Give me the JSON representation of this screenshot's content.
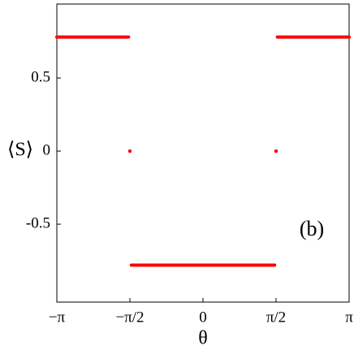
{
  "chart_data": {
    "type": "line",
    "x_label": "θ",
    "y_label": "⟨S⟩",
    "annotation": "(b)",
    "x": [
      -3.1416,
      -1.6,
      -1.58,
      -1.5708,
      -1.56,
      -1.54,
      1.54,
      1.56,
      1.5708,
      1.58,
      1.6,
      3.1416
    ],
    "series": [
      {
        "color": "#ff0000",
        "values": [
          0.78,
          0.78,
          null,
          0,
          null,
          -0.78,
          -0.78,
          null,
          0,
          null,
          0.78,
          0.78
        ]
      }
    ],
    "xlim": [
      -3.1416,
      3.1416
    ],
    "xticks": [
      {
        "value": -3.1416,
        "label": "−π"
      },
      {
        "value": -1.5708,
        "label": "−π/2"
      },
      {
        "value": 0,
        "label": "0"
      },
      {
        "value": 1.5708,
        "label": "π/2"
      },
      {
        "value": 3.1416,
        "label": "π"
      }
    ],
    "ylim": [
      -1.033,
      1.006
    ],
    "yticks": [
      0.5,
      0,
      -0.5
    ]
  }
}
